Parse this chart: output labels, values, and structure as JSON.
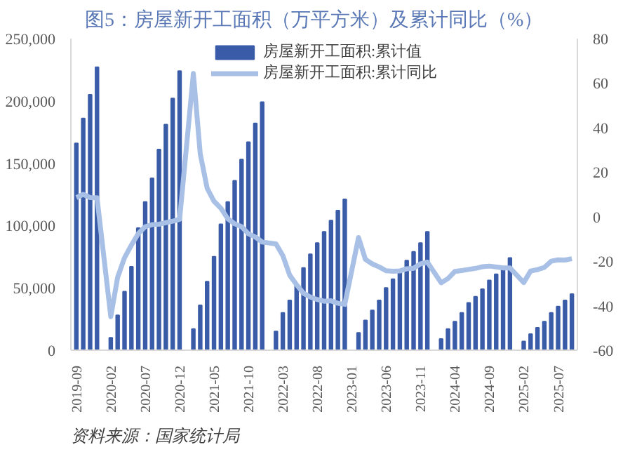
{
  "chart_data": {
    "type": "bar",
    "title": "图5：房屋新开工面积（万平方米）及累计同比（%）",
    "categories": [
      "2019-09",
      null,
      null,
      null,
      null,
      "2020-02",
      null,
      null,
      null,
      null,
      "2020-07",
      null,
      null,
      null,
      null,
      "2020-12",
      null,
      null,
      null,
      null,
      "2021-05",
      null,
      null,
      null,
      null,
      "2021-10",
      null,
      null,
      null,
      null,
      "2022-03",
      null,
      null,
      null,
      null,
      "2022-08",
      null,
      null,
      null,
      null,
      "2023-01",
      null,
      null,
      null,
      null,
      "2023-06",
      null,
      null,
      null,
      null,
      "2023-11",
      null,
      null,
      null,
      null,
      "2024-04",
      null,
      null,
      null,
      null,
      "2024-09",
      null,
      null,
      null,
      null,
      "2025-02",
      null,
      null,
      null,
      null,
      "2025-07",
      null,
      null
    ],
    "series": [
      {
        "name": "房屋新开工面积:累计值",
        "color": "#3a5ca8",
        "values": [
          166000,
          186000,
          205000,
          227000,
          null,
          10000,
          28000,
          47000,
          67000,
          98000,
          119000,
          138000,
          161000,
          181000,
          202000,
          224000,
          null,
          17000,
          36000,
          55000,
          75000,
          101000,
          119000,
          136000,
          153000,
          167000,
          182000,
          199000,
          null,
          15000,
          30000,
          40000,
          52000,
          66000,
          77000,
          86000,
          95000,
          104000,
          112000,
          121000,
          null,
          14000,
          24000,
          32000,
          40000,
          50000,
          57000,
          64000,
          72000,
          79000,
          86000,
          95000,
          null,
          9000,
          17000,
          23000,
          30000,
          38000,
          43000,
          49000,
          56000,
          61000,
          67000,
          74000,
          null,
          7000,
          13000,
          18000,
          23000,
          30000,
          35000,
          40000,
          45000
        ]
      },
      {
        "name": "房屋新开工面积:累计同比",
        "type": "line",
        "axis": "y2",
        "color": "#a9c0e6",
        "values": [
          8.6,
          10.0,
          8.6,
          8.5,
          null,
          -44.9,
          -27.2,
          -18.4,
          -12.8,
          -7.6,
          -4.5,
          -3.6,
          -3.4,
          -2.7,
          -2.0,
          -1.2,
          null,
          64.3,
          28.2,
          12.8,
          6.9,
          3.8,
          -0.9,
          -3.2,
          -4.5,
          -7.7,
          -9.1,
          -11.4,
          null,
          -12.2,
          -17.5,
          -26.3,
          -30.6,
          -34.4,
          -36.1,
          -37.2,
          -38.0,
          -37.8,
          -38.9,
          -39.4,
          null,
          -9.4,
          -19.2,
          -21.2,
          -22.6,
          -24.3,
          -24.5,
          -24.4,
          -23.4,
          -23.2,
          -21.2,
          -20.4,
          null,
          -29.7,
          -27.8,
          -24.6,
          -24.2,
          -23.7,
          -23.2,
          -22.5,
          -22.2,
          -22.6,
          -23.0,
          -23.0,
          null,
          -29.6,
          -24.4,
          -23.8,
          -22.8,
          -20.0,
          -19.4,
          -19.5,
          -18.9
        ]
      }
    ],
    "ylim": [
      0,
      250000
    ],
    "yticks": [
      {
        "value": 0,
        "label": "0"
      },
      {
        "value": 50000,
        "label": "50,000"
      },
      {
        "value": 100000,
        "label": "100,000"
      },
      {
        "value": 150000,
        "label": "150,000"
      },
      {
        "value": 200000,
        "label": "200,000"
      },
      {
        "value": 250000,
        "label": "250,000"
      }
    ],
    "y2lim": [
      -60,
      80
    ],
    "y2ticks": [
      -60,
      -40,
      -20,
      0,
      20,
      40,
      60,
      80
    ],
    "grid": false,
    "legend": "top",
    "annotations": [
      "资料来源：国家统计局"
    ]
  }
}
